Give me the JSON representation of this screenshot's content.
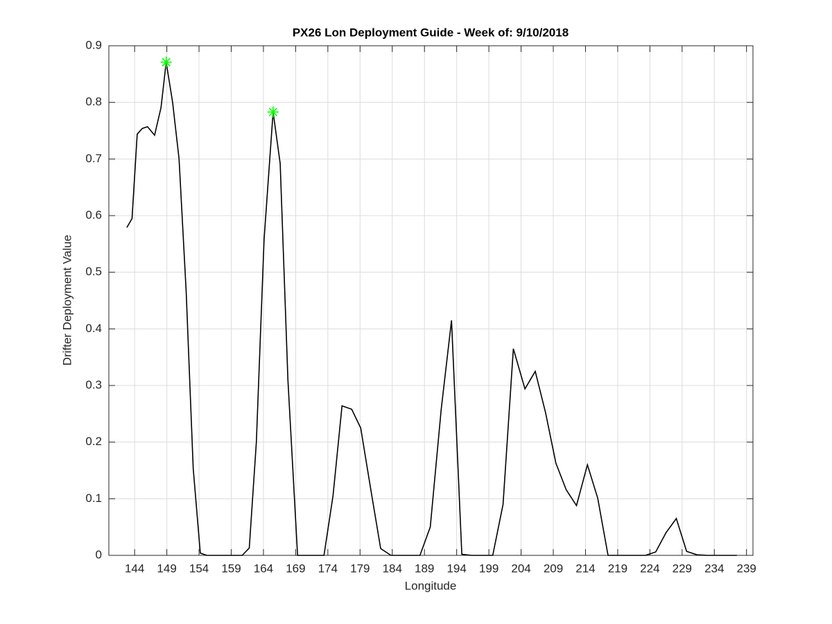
{
  "chart_data": {
    "type": "line",
    "title": "PX26 Lon Deployment Guide - Week of: 9/10/2018",
    "xlabel": "Longitude",
    "ylabel": "Drifter Deployment Value",
    "x": [
      142.8,
      143.6,
      144.4,
      145.2,
      146.0,
      147.1,
      148.1,
      148.9,
      149.9,
      150.9,
      152.0,
      153.1,
      154.2,
      155.2,
      156.3,
      157.3,
      158.4,
      159.6,
      160.7,
      161.8,
      162.9,
      164.1,
      165.5,
      166.6,
      167.8,
      169.3,
      170.7,
      172.0,
      173.4,
      174.8,
      176.2,
      177.7,
      179.1,
      180.7,
      182.2,
      183.8,
      185.3,
      186.8,
      188.3,
      189.9,
      191.6,
      193.2,
      194.8,
      196.3,
      197.9,
      199.6,
      201.2,
      202.8,
      204.6,
      206.2,
      207.8,
      209.4,
      211.0,
      212.6,
      214.3,
      215.9,
      217.5,
      219.0,
      220.4,
      221.8,
      223.3,
      224.9,
      226.5,
      228.1,
      229.7,
      231.3,
      232.9,
      234.4,
      236.0,
      237.5
    ],
    "values": [
      0.579,
      0.595,
      0.744,
      0.754,
      0.757,
      0.742,
      0.791,
      0.871,
      0.8,
      0.7,
      0.467,
      0.153,
      0.004,
      0,
      0,
      0,
      0,
      0,
      0,
      0.013,
      0.2,
      0.558,
      0.783,
      0.692,
      0.31,
      0,
      0,
      0,
      0,
      0.105,
      0.264,
      0.258,
      0.225,
      0.114,
      0.012,
      0,
      0,
      0,
      0,
      0.05,
      0.258,
      0.415,
      0.002,
      0,
      0,
      0,
      0.09,
      0.365,
      0.294,
      0.325,
      0.252,
      0.163,
      0.116,
      0.088,
      0.16,
      0.101,
      0,
      0,
      0,
      0,
      0,
      0.006,
      0.04,
      0.065,
      0.007,
      0.001,
      0,
      0,
      0,
      0
    ],
    "color": "#000000",
    "peaks": {
      "x": [
        148.9,
        165.5
      ],
      "values": [
        0.871,
        0.783
      ],
      "color": "#00ff00"
    },
    "xlim": [
      140,
      240
    ],
    "xticks": [
      144,
      149,
      154,
      159,
      164,
      169,
      174,
      179,
      184,
      189,
      194,
      199,
      204,
      209,
      214,
      219,
      224,
      229,
      234,
      239
    ],
    "ylim": [
      0,
      0.9
    ],
    "yticks": [
      0,
      0.1,
      0.2,
      0.3,
      0.4,
      0.5,
      0.6,
      0.7,
      0.8,
      0.9
    ],
    "grid": true
  }
}
